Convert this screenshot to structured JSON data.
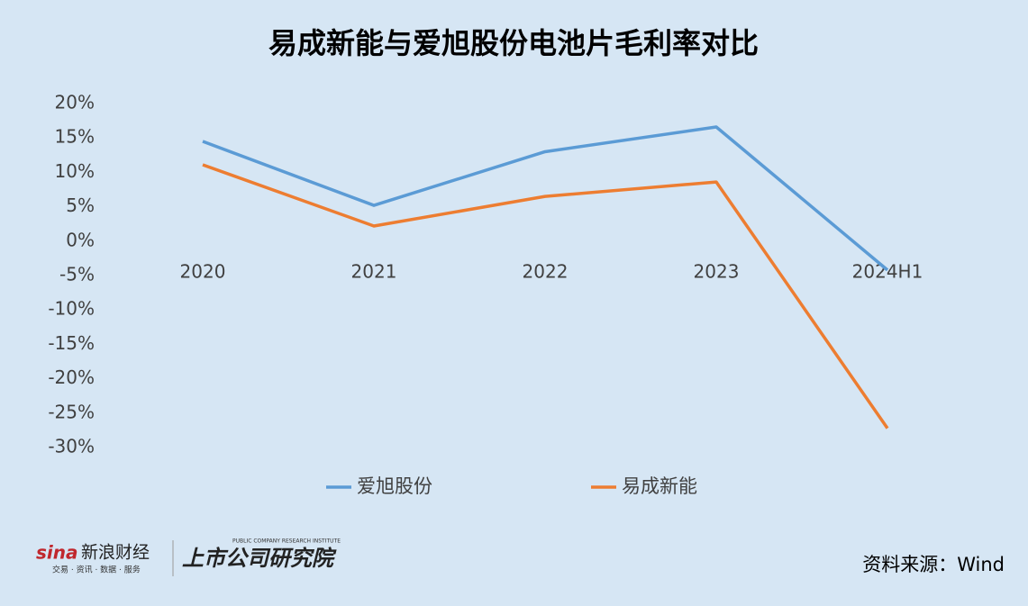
{
  "chart_data": {
    "type": "line",
    "title": "易成新能与爱旭股份电池片毛利率对比",
    "categories": [
      "2020",
      "2021",
      "2022",
      "2023",
      "2024H1"
    ],
    "series": [
      {
        "name": "爱旭股份",
        "color": "#5b9bd5",
        "values": [
          14.5,
          5.2,
          13.0,
          16.6,
          -4.2
        ]
      },
      {
        "name": "易成新能",
        "color": "#ed7d31",
        "values": [
          11.1,
          2.2,
          6.5,
          8.6,
          -27.2
        ]
      }
    ],
    "ylim": [
      -30,
      20
    ],
    "yticks": [
      {
        "value": 20,
        "label": "20%"
      },
      {
        "value": 15,
        "label": "15%"
      },
      {
        "value": 10,
        "label": "10%"
      },
      {
        "value": 5,
        "label": "5%"
      },
      {
        "value": 0,
        "label": "0%"
      },
      {
        "value": -5,
        "label": "-5%"
      },
      {
        "value": -10,
        "label": "-10%"
      },
      {
        "value": -15,
        "label": "-15%"
      },
      {
        "value": -20,
        "label": "-20%"
      },
      {
        "value": -25,
        "label": "-25%"
      },
      {
        "value": -30,
        "label": "-30%"
      }
    ],
    "grid": false,
    "source": "资料来源：Wind",
    "logo": {
      "brand": "sina",
      "name": "新浪财经",
      "tagline": "交易 · 资讯 · 数据 · 服务",
      "institute": "上市公司研究院",
      "institute_en": "PUBLIC COMPANY RESEARCH INSTITUTE"
    }
  }
}
